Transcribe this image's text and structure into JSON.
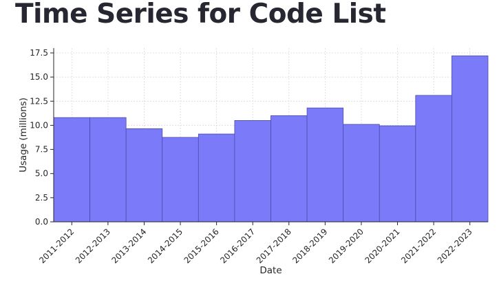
{
  "header": {
    "title": "Time Series for Code List"
  },
  "chart_data": {
    "type": "bar",
    "categories": [
      "2011-2012",
      "2012-2013",
      "2013-2014",
      "2014-2015",
      "2015-2016",
      "2016-2017",
      "2017-2018",
      "2018-2019",
      "2019-2020",
      "2020-2021",
      "2021-2022",
      "2022-2023"
    ],
    "values": [
      10.8,
      10.8,
      9.65,
      8.75,
      9.1,
      10.5,
      11.0,
      11.8,
      10.1,
      9.95,
      13.1,
      17.2
    ],
    "xlabel": "Date",
    "ylabel": "Usage (millions)",
    "ylim": [
      0,
      18
    ],
    "yticks": [
      0.0,
      2.5,
      5.0,
      7.5,
      10.0,
      12.5,
      15.0,
      17.5
    ],
    "ytick_labels": [
      "0.0",
      "2.5",
      "5.0",
      "7.5",
      "10.0",
      "12.5",
      "15.0",
      "17.5"
    ],
    "grid": true,
    "colors": {
      "bar_fill": "#7b7bfa",
      "bar_edge": "#4b4ba8",
      "grid": "#d9d9d9",
      "axis": "#262626"
    }
  }
}
